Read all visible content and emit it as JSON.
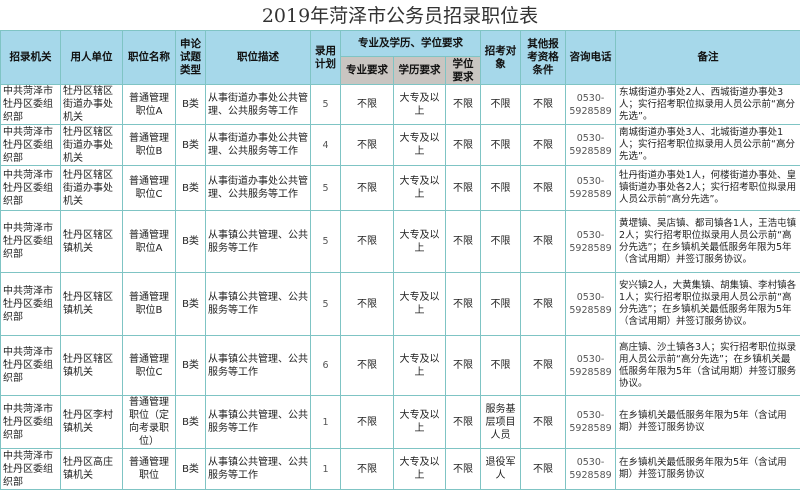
{
  "title": "2019年菏泽市公务员招录职位表",
  "headers": {
    "agency": "招录机关",
    "employer": "用人单位",
    "position": "职位名称",
    "exam_type": "申论试题类型",
    "description": "职位描述",
    "plan": "录用计划",
    "group": "专业及学历、学位要求",
    "major": "专业要求",
    "education": "学历要求",
    "degree": "学位要求",
    "target": "招考对象",
    "other": "其他报考资格条件",
    "phone": "咨询电话",
    "remark": "备注"
  },
  "rows": [
    {
      "agency": "中共菏泽市牡丹区委组织部",
      "employer": "牡丹区辖区街道办事处机关",
      "position": "普通管理职位A",
      "exam_type": "B类",
      "description": "从事街道办事处公共管理、公共服务等工作",
      "plan": "5",
      "major": "不限",
      "education": "大专及以上",
      "degree": "不限",
      "target": "不限",
      "other": "不限",
      "phone": "0530-5928589",
      "remark": "东城街道办事处2人、西城街道办事处3人；实行招考职位拟录用人员公示前“高分先选”。"
    },
    {
      "agency": "中共菏泽市牡丹区委组织部",
      "employer": "牡丹区辖区街道办事处机关",
      "position": "普通管理职位B",
      "exam_type": "B类",
      "description": "从事街道办事处公共管理、公共服务等工作",
      "plan": "4",
      "major": "不限",
      "education": "大专及以上",
      "degree": "不限",
      "target": "不限",
      "other": "不限",
      "phone": "0530-5928589",
      "remark": "南城街道办事处3人、北城街道办事处1人；实行招考职位拟录用人员公示前“高分先选”。"
    },
    {
      "agency": "中共菏泽市牡丹区委组织部",
      "employer": "牡丹区辖区街道办事处机关",
      "position": "普通管理职位C",
      "exam_type": "B类",
      "description": "从事街道办事处公共管理、公共服务等工作",
      "plan": "5",
      "major": "不限",
      "education": "大专及以上",
      "degree": "不限",
      "target": "不限",
      "other": "不限",
      "phone": "0530-5928589",
      "remark": "牡丹街道办事处1人，何楼街道办事处、皇镇街道办事处各2人；实行招考职位拟录用人员公示前“高分先选”。"
    },
    {
      "agency": "中共菏泽市牡丹区委组织部",
      "employer": "牡丹区辖区镇机关",
      "position": "普通管理职位A",
      "exam_type": "B类",
      "description": "从事镇公共管理、公共服务等工作",
      "plan": "5",
      "major": "不限",
      "education": "大专及以上",
      "degree": "不限",
      "target": "不限",
      "other": "不限",
      "phone": "0530-5928589",
      "remark": "黄堽镇、吴店镇、都司镇各1人，王浩屯镇2人；实行招考职位拟录用人员公示前“高分先选”；在乡镇机关最低服务年限为5年（含试用期）并签订服务协议。"
    },
    {
      "agency": "中共菏泽市牡丹区委组织部",
      "employer": "牡丹区辖区镇机关",
      "position": "普通管理职位B",
      "exam_type": "B类",
      "description": "从事镇公共管理、公共服务等工作",
      "plan": "5",
      "major": "不限",
      "education": "大专及以上",
      "degree": "不限",
      "target": "不限",
      "other": "不限",
      "phone": "0530-5928589",
      "remark": "安兴镇2人，大黄集镇、胡集镇、李村镇各1人；实行招考职位拟录用人员公示前“高分先选”；在乡镇机关最低服务年限为5年（含试用期）并签订服务协议。"
    },
    {
      "agency": "中共菏泽市牡丹区委组织部",
      "employer": "牡丹区辖区镇机关",
      "position": "普通管理职位C",
      "exam_type": "B类",
      "description": "从事镇公共管理、公共服务等工作",
      "plan": "6",
      "major": "不限",
      "education": "大专及以上",
      "degree": "不限",
      "target": "不限",
      "other": "不限",
      "phone": "0530-5928589",
      "remark": "高庄镇、沙土镇各3人；实行招考职位拟录用人员公示前“高分先选”；在乡镇机关最低服务年限为5年（含试用期）并签订服务协议。"
    },
    {
      "agency": "中共菏泽市牡丹区委组织部",
      "employer": "牡丹区李村镇机关",
      "position": "普通管理职位（定向考录职位）",
      "exam_type": "B类",
      "description": "从事镇公共管理、公共服务等工作",
      "plan": "1",
      "major": "不限",
      "education": "大专及以上",
      "degree": "不限",
      "target": "服务基层项目人员",
      "other": "不限",
      "phone": "0530-5928589",
      "remark": "在乡镇机关最低服务年限为5年（含试用期）并签订服务协议"
    },
    {
      "agency": "中共菏泽市牡丹区委组织部",
      "employer": "牡丹区高庄镇机关",
      "position": "普通管理职位",
      "exam_type": "B类",
      "description": "从事镇公共管理、公共服务等工作",
      "plan": "1",
      "major": "不限",
      "education": "大专及以上",
      "degree": "不限",
      "target": "退役军人",
      "other": "不限",
      "phone": "0530-5928589",
      "remark": "在乡镇机关最低服务年限为5年（含试用期）并签订服务协议"
    }
  ]
}
